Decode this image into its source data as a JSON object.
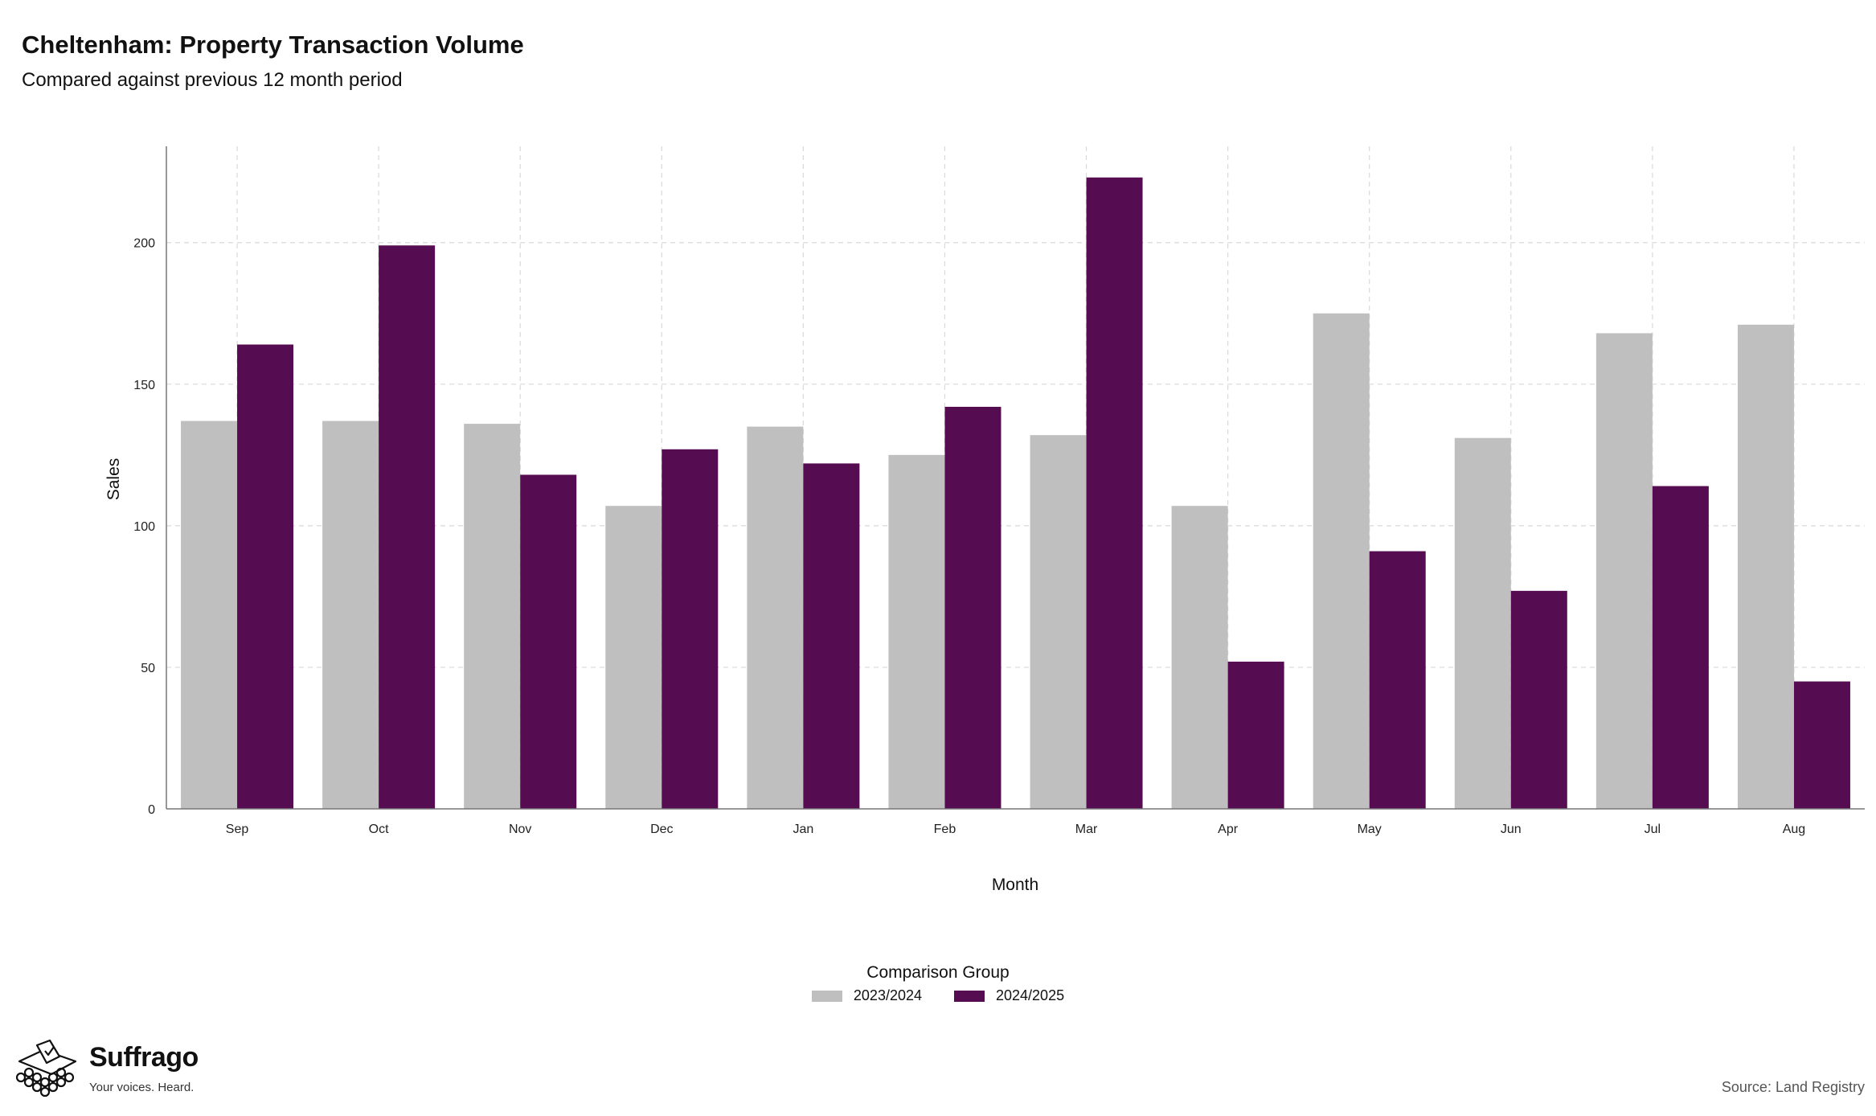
{
  "header": {
    "title": "Cheltenham: Property Transaction Volume",
    "subtitle": "Compared against previous 12 month period"
  },
  "chart_data": {
    "type": "bar",
    "categories": [
      "Sep",
      "Oct",
      "Nov",
      "Dec",
      "Jan",
      "Feb",
      "Mar",
      "Apr",
      "May",
      "Jun",
      "Jul",
      "Aug"
    ],
    "series": [
      {
        "name": "2023/2024",
        "color": "#bfbfbf",
        "values": [
          137,
          137,
          136,
          107,
          135,
          125,
          132,
          107,
          175,
          131,
          168,
          171
        ]
      },
      {
        "name": "2024/2025",
        "color": "#560c51",
        "values": [
          164,
          199,
          118,
          127,
          122,
          142,
          223,
          52,
          91,
          77,
          114,
          45
        ]
      }
    ],
    "xlabel": "Month",
    "ylabel": "Sales",
    "ylim": [
      0,
      234
    ],
    "yticks": [
      0,
      50,
      100,
      150,
      200
    ],
    "grid": true,
    "legend_title": "Comparison Group",
    "legend_position": "bottom"
  },
  "footer": {
    "brand": "Suffrago",
    "tagline": "Your voices. Heard.",
    "source": "Source: Land Registry",
    "logo_icon": "ballot-box-icon"
  }
}
